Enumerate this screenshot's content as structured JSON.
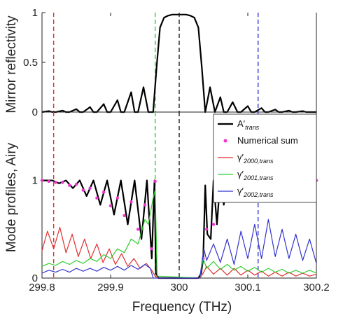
{
  "chart_data": [
    {
      "type": "line",
      "panel": "top",
      "ylabel": "Mirror reflectivity",
      "xlim": [
        299.8,
        300.2
      ],
      "ylim": [
        0,
        1
      ],
      "yticks": [
        "0",
        "0.5",
        "1"
      ],
      "grid": false,
      "series": [
        {
          "color": "#000000",
          "x": [
            299.8,
            299.81,
            299.815,
            299.82,
            299.83,
            299.835,
            299.84,
            299.85,
            299.855,
            299.86,
            299.87,
            299.875,
            299.88,
            299.89,
            299.895,
            299.9,
            299.91,
            299.915,
            299.92,
            299.93,
            299.935,
            299.94,
            299.948,
            299.955,
            299.962,
            299.967,
            299.972,
            299.978,
            299.984,
            299.99,
            300.0,
            300.01,
            300.016,
            300.022,
            300.028,
            300.033,
            300.038,
            300.045,
            300.052,
            300.06,
            300.065,
            300.07,
            300.078,
            300.085,
            300.09,
            300.1,
            300.105,
            300.11,
            300.12,
            300.125,
            300.13,
            300.14,
            300.145,
            300.15,
            300.16,
            300.165,
            300.17,
            300.18,
            300.185,
            300.19,
            300.2
          ],
          "y": [
            0.0,
            0.01,
            0.0,
            0.0,
            0.015,
            0.0,
            0.0,
            0.03,
            0.0,
            0.0,
            0.05,
            0.0,
            0.0,
            0.08,
            0.0,
            0.0,
            0.12,
            0.0,
            0.0,
            0.2,
            0.0,
            0.0,
            0.25,
            0.0,
            0.0,
            0.45,
            0.85,
            0.95,
            0.97,
            0.98,
            0.98,
            0.98,
            0.97,
            0.95,
            0.85,
            0.45,
            0.0,
            0.25,
            0.0,
            0.15,
            0.0,
            0.0,
            0.1,
            0.0,
            0.0,
            0.06,
            0.0,
            0.0,
            0.04,
            0.0,
            0.0,
            0.025,
            0.0,
            0.0,
            0.015,
            0.0,
            0.0,
            0.01,
            0.0,
            0.0,
            0.0
          ]
        }
      ],
      "vlines": [
        {
          "x": 299.817,
          "color": "#e0302e"
        },
        {
          "x": 299.965,
          "color": "#33cc33"
        },
        {
          "x": 300.0,
          "color": "#222222"
        },
        {
          "x": 300.115,
          "color": "#3333cc"
        }
      ]
    },
    {
      "type": "line",
      "panel": "bottom",
      "xlabel": "Frequency (THz)",
      "ylabel": "Mode profiles, Airy",
      "xlim": [
        299.8,
        300.2
      ],
      "ylim": [
        0,
        1.7
      ],
      "xticks": [
        "299.8",
        "299.9",
        "300",
        "300.1",
        "300.2"
      ],
      "yticks": [
        "0",
        "1"
      ],
      "grid": false,
      "legend": "top-right",
      "series": [
        {
          "name": "A′trans",
          "color": "#000000",
          "x": [
            299.8,
            299.815,
            299.825,
            299.835,
            299.845,
            299.855,
            299.865,
            299.875,
            299.885,
            299.895,
            299.905,
            299.915,
            299.925,
            299.935,
            299.945,
            299.953,
            299.96,
            299.964,
            299.966,
            299.97,
            299.975,
            299.985,
            300.0,
            300.02,
            300.028,
            300.032,
            300.035,
            300.038,
            300.041,
            300.046,
            300.05,
            300.055,
            300.06,
            300.065,
            300.07,
            300.075,
            300.085,
            300.095,
            300.105,
            300.115,
            300.125,
            300.135,
            300.145,
            300.155,
            300.165,
            300.175,
            300.185,
            300.2
          ],
          "y": [
            1.0,
            1.0,
            0.97,
            1.0,
            0.92,
            1.0,
            0.84,
            1.0,
            0.75,
            1.0,
            0.65,
            1.0,
            0.55,
            1.0,
            0.4,
            1.0,
            0.2,
            1.0,
            0.05,
            0.0,
            0.0,
            0.0,
            0.0,
            0.0,
            0.0,
            0.05,
            0.2,
            0.95,
            0.45,
            0.4,
            1.0,
            0.55,
            1.0,
            0.75,
            1.0,
            0.85,
            1.0,
            0.9,
            1.0,
            0.95,
            1.0,
            0.96,
            1.0,
            0.97,
            1.0,
            0.98,
            1.0,
            1.0
          ]
        },
        {
          "name": "Numerical sum",
          "color": "#ee33cc",
          "marker": "dot",
          "x": [
            299.8,
            299.81,
            299.82,
            299.83,
            299.84,
            299.85,
            299.86,
            299.87,
            299.88,
            299.89,
            299.9,
            299.91,
            299.92,
            299.93,
            299.94,
            299.95,
            299.96,
            299.965,
            300.035,
            300.04,
            300.05,
            300.06,
            300.07,
            300.08,
            300.09,
            300.1,
            300.11,
            300.12,
            300.13,
            300.14,
            300.15,
            300.16,
            300.17,
            300.18,
            300.19,
            300.2
          ],
          "y": [
            1.0,
            0.99,
            0.98,
            0.98,
            0.95,
            0.96,
            0.9,
            0.92,
            0.82,
            0.88,
            0.74,
            0.82,
            0.64,
            0.78,
            0.5,
            0.75,
            0.3,
            0.99,
            0.2,
            0.5,
            0.55,
            0.8,
            0.85,
            0.9,
            0.92,
            0.94,
            0.95,
            0.96,
            0.97,
            0.97,
            0.98,
            0.98,
            0.99,
            0.99,
            0.99,
            1.0
          ]
        },
        {
          "name": "γ′2000,trans",
          "color": "#e0302e",
          "x": [
            299.8,
            299.808,
            299.817,
            299.826,
            299.835,
            299.844,
            299.853,
            299.862,
            299.871,
            299.88,
            299.889,
            299.898,
            299.907,
            299.916,
            299.925,
            299.934,
            299.943,
            299.952,
            299.96,
            299.965,
            299.97,
            300.03,
            300.035,
            300.04,
            300.05,
            300.06,
            300.07,
            300.08,
            300.09,
            300.1,
            300.11,
            300.12,
            300.13,
            300.14,
            300.15,
            300.16,
            300.17,
            300.18,
            300.19,
            300.2
          ],
          "y": [
            0.28,
            0.48,
            0.3,
            0.52,
            0.26,
            0.45,
            0.22,
            0.4,
            0.2,
            0.35,
            0.16,
            0.3,
            0.14,
            0.25,
            0.12,
            0.2,
            0.1,
            0.15,
            0.08,
            0.02,
            0.0,
            0.0,
            0.05,
            0.12,
            0.04,
            0.1,
            0.03,
            0.1,
            0.03,
            0.08,
            0.03,
            0.07,
            0.02,
            0.06,
            0.02,
            0.06,
            0.02,
            0.05,
            0.02,
            0.04
          ]
        },
        {
          "name": "γ′2001,trans",
          "color": "#33cc33",
          "x": [
            299.8,
            299.81,
            299.82,
            299.83,
            299.84,
            299.85,
            299.86,
            299.87,
            299.88,
            299.89,
            299.9,
            299.91,
            299.92,
            299.93,
            299.94,
            299.95,
            299.955,
            299.962,
            299.965,
            299.968,
            300.03,
            300.035,
            300.04,
            300.05,
            300.06,
            300.07,
            300.08,
            300.09,
            300.1,
            300.11,
            300.12,
            300.13,
            300.14,
            300.15,
            300.16,
            300.17,
            300.18,
            300.19,
            300.2
          ],
          "y": [
            0.12,
            0.15,
            0.13,
            0.17,
            0.14,
            0.18,
            0.15,
            0.2,
            0.17,
            0.24,
            0.2,
            0.3,
            0.26,
            0.4,
            0.35,
            0.6,
            0.55,
            0.82,
            0.9,
            0.02,
            0.0,
            0.2,
            0.1,
            0.17,
            0.09,
            0.14,
            0.08,
            0.12,
            0.07,
            0.11,
            0.06,
            0.1,
            0.06,
            0.09,
            0.05,
            0.08,
            0.05,
            0.08,
            0.05
          ]
        },
        {
          "name": "γ′2002,trans",
          "color": "#3333cc",
          "x": [
            299.8,
            299.81,
            299.82,
            299.83,
            299.84,
            299.85,
            299.86,
            299.87,
            299.88,
            299.89,
            299.9,
            299.91,
            299.92,
            299.93,
            299.94,
            299.95,
            299.958,
            299.962,
            300.03,
            300.036,
            300.04,
            300.05,
            300.06,
            300.07,
            300.08,
            300.09,
            300.1,
            300.11,
            300.12,
            300.13,
            300.14,
            300.15,
            300.16,
            300.17,
            300.18,
            300.19,
            300.2
          ],
          "y": [
            0.05,
            0.08,
            0.06,
            0.09,
            0.06,
            0.1,
            0.07,
            0.1,
            0.07,
            0.11,
            0.08,
            0.12,
            0.08,
            0.13,
            0.09,
            0.14,
            0.1,
            0.0,
            0.0,
            0.3,
            0.18,
            0.35,
            0.16,
            0.4,
            0.14,
            0.48,
            0.2,
            0.55,
            0.2,
            0.6,
            0.22,
            0.5,
            0.2,
            0.45,
            0.18,
            0.4,
            0.15
          ]
        }
      ],
      "vlines": [
        {
          "x": 299.817,
          "color": "#e0302e"
        },
        {
          "x": 299.965,
          "color": "#33cc33"
        },
        {
          "x": 300.0,
          "color": "#222222"
        },
        {
          "x": 300.115,
          "color": "#3333cc"
        }
      ],
      "legend_entries": [
        {
          "main": "A′",
          "sub": "trans",
          "color": "#000000",
          "kind": "line"
        },
        {
          "main": "Numerical sum",
          "sub": "",
          "color": "#ee33cc",
          "kind": "dot"
        },
        {
          "main": "γ′",
          "sub": "2000,trans",
          "color": "#e0302e",
          "kind": "line"
        },
        {
          "main": "γ′",
          "sub": "2001,trans",
          "color": "#33cc33",
          "kind": "line"
        },
        {
          "main": "γ′",
          "sub": "2002,trans",
          "color": "#3333cc",
          "kind": "line"
        }
      ]
    }
  ]
}
